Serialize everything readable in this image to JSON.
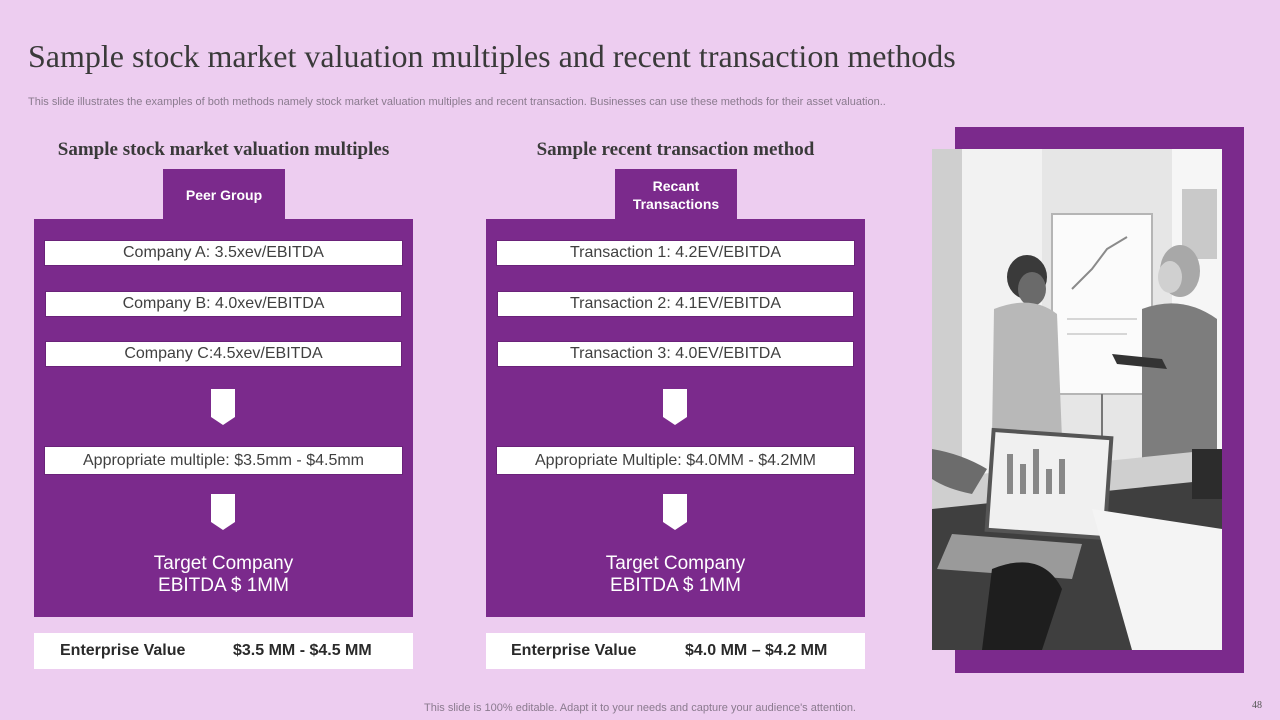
{
  "slide": {
    "title": "Sample stock market valuation multiples and recent transaction methods",
    "subtitle": "This slide illustrates the examples of both methods namely stock market valuation multiples and recent transaction. Businesses can use these methods for their asset valuation..",
    "footer": "This slide is 100% editable. Adapt it to your needs and capture your audience's attention.",
    "page_number": "48"
  },
  "left": {
    "heading": "Sample stock market valuation multiples",
    "tab_label": "Peer Group",
    "rows": [
      "Company A: 3.5xev/EBITDA",
      "Company B: 4.0xev/EBITDA",
      "Company C:4.5xev/EBITDA"
    ],
    "multiple": "Appropriate multiple: $3.5mm - $4.5mm",
    "target_line1": "Target Company",
    "target_line2": "EBITDA $ 1MM",
    "ev_label": "Enterprise Value",
    "ev_value": "$3.5 MM -  $4.5 MM"
  },
  "right": {
    "heading": "Sample recent transaction method",
    "tab_line1": "Recant",
    "tab_line2": "Transactions",
    "rows": [
      "Transaction 1: 4.2EV/EBITDA",
      "Transaction 2: 4.1EV/EBITDA",
      "Transaction 3: 4.0EV/EBITDA"
    ],
    "multiple": "Appropriate Multiple: $4.0MM - $4.2MM",
    "target_line1": "Target Company",
    "target_line2": "EBITDA $ 1MM",
    "ev_label": "Enterprise Value",
    "ev_value": "$4.0 MM – $4.2 MM"
  },
  "colors": {
    "accent": "#7b2a8c",
    "background": "#edcdf0"
  }
}
